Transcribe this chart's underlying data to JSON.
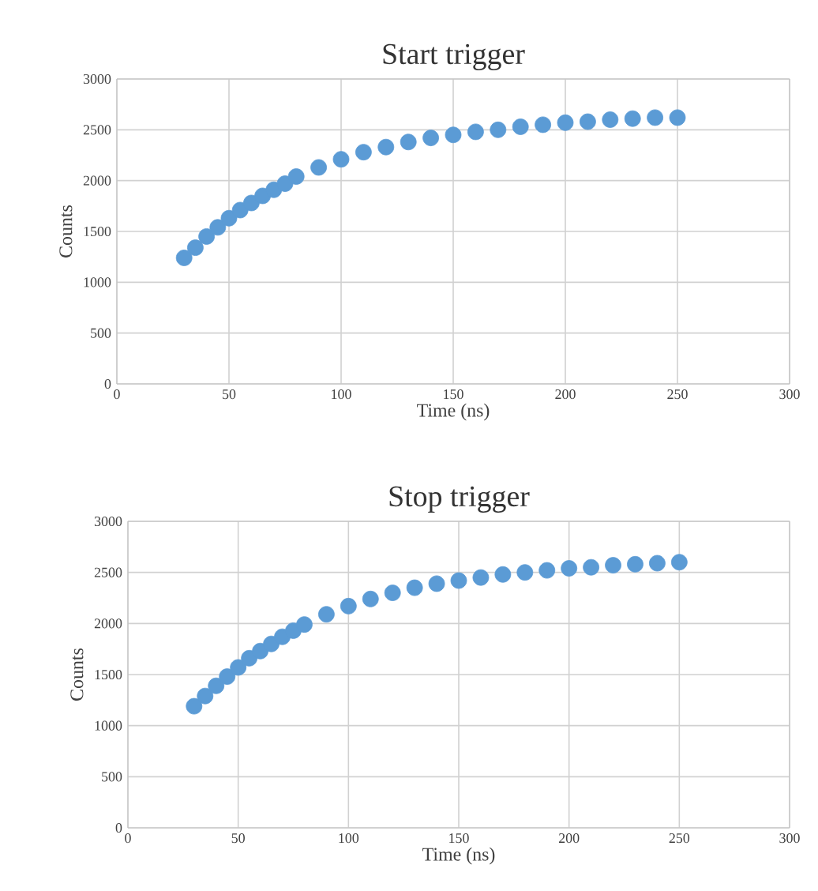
{
  "chart_data": [
    {
      "type": "scatter",
      "title": "Start trigger",
      "xlabel": "Time (ns)",
      "ylabel": "Counts",
      "x": [
        30,
        35,
        40,
        45,
        50,
        55,
        60,
        65,
        70,
        75,
        80,
        90,
        100,
        110,
        120,
        130,
        140,
        150,
        160,
        170,
        180,
        190,
        200,
        210,
        220,
        230,
        240,
        250
      ],
      "values": [
        1240,
        1340,
        1450,
        1540,
        1630,
        1710,
        1780,
        1850,
        1910,
        1970,
        2040,
        2130,
        2210,
        2280,
        2330,
        2380,
        2420,
        2450,
        2480,
        2500,
        2530,
        2550,
        2570,
        2580,
        2600,
        2610,
        2620,
        2620
      ],
      "color": "#5b9bd5",
      "marker": "circle",
      "grid": true,
      "xlim": [
        0,
        300
      ],
      "xticks": [
        0,
        50,
        100,
        150,
        200,
        250,
        300
      ],
      "ylim": [
        0,
        3000
      ],
      "yticks": [
        0,
        500,
        1000,
        1500,
        2000,
        2500,
        3000
      ]
    },
    {
      "type": "scatter",
      "title": "Stop trigger",
      "xlabel": "Time (ns)",
      "ylabel": "Counts",
      "x": [
        30,
        35,
        40,
        45,
        50,
        55,
        60,
        65,
        70,
        75,
        80,
        90,
        100,
        110,
        120,
        130,
        140,
        150,
        160,
        170,
        180,
        190,
        200,
        210,
        220,
        230,
        240,
        250
      ],
      "values": [
        1190,
        1290,
        1390,
        1480,
        1570,
        1660,
        1730,
        1800,
        1870,
        1930,
        1990,
        2090,
        2170,
        2240,
        2300,
        2350,
        2390,
        2420,
        2450,
        2480,
        2500,
        2520,
        2540,
        2550,
        2570,
        2580,
        2590,
        2600
      ],
      "color": "#5b9bd5",
      "marker": "circle",
      "grid": true,
      "xlim": [
        0,
        300
      ],
      "xticks": [
        0,
        50,
        100,
        150,
        200,
        250,
        300
      ],
      "ylim": [
        0,
        3000
      ],
      "yticks": [
        0,
        500,
        1000,
        1500,
        2000,
        2500,
        3000
      ]
    }
  ]
}
